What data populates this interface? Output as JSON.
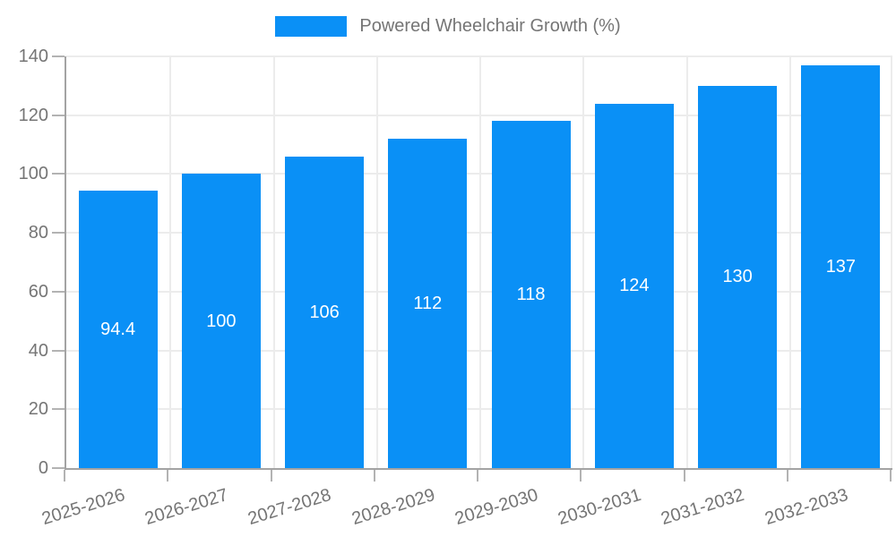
{
  "legend": {
    "label": "Powered Wheelchair Growth (%)"
  },
  "chart_data": {
    "type": "bar",
    "title": "Powered Wheelchair Growth (%)",
    "categories": [
      "2025-2026",
      "2026-2027",
      "2027-2028",
      "2028-2029",
      "2029-2030",
      "2030-2031",
      "2031-2032",
      "2032-2033"
    ],
    "values": [
      94.4,
      100,
      106,
      112,
      118,
      124,
      130,
      137
    ],
    "value_labels": [
      "94.4",
      "100",
      "106",
      "112",
      "118",
      "124",
      "130",
      "137"
    ],
    "xlabel": "",
    "ylabel": "",
    "ylim": [
      0,
      140
    ],
    "ytick_step": 20,
    "ytick_labels": [
      "0",
      "20",
      "40",
      "60",
      "80",
      "100",
      "120",
      "140"
    ],
    "grid": true,
    "legend_position": "top-center",
    "value_label_position": "inside-center"
  },
  "colors": {
    "bar": "#0a90f6",
    "grid": "#ececec",
    "axis": "#a3a3a3",
    "tick": "#b3b3b3",
    "text": "#757575",
    "bar_label": "#ffffff",
    "background": "#ffffff"
  }
}
